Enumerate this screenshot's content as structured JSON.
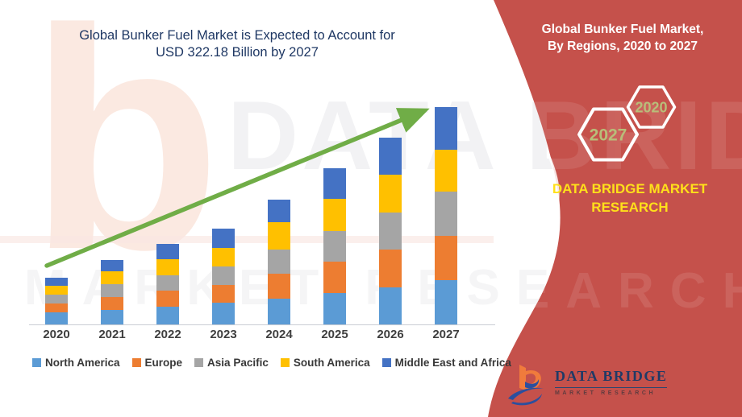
{
  "title": {
    "line1": "Global Bunker Fuel Market is Expected to Account for",
    "line2": "USD 322.18 Billion by 2027"
  },
  "panel": {
    "header_line1": "Global Bunker Fuel Market,",
    "header_line2": "By Regions, 2020 to 2027",
    "hexagon_large_label": "2027",
    "hexagon_small_label": "2020",
    "brand_line1": "DATA BRIDGE MARKET",
    "brand_line2": "RESEARCH",
    "bg_color": "#c5514b",
    "brand_color": "#ffe01a",
    "hex_label_color": "#b8be79"
  },
  "logo": {
    "name": "DATA BRIDGE",
    "tagline": "MARKET RESEARCH"
  },
  "watermark": {
    "letter": "b",
    "line1": "DATA BRIDGE",
    "line2": "MARKET RESEARCH"
  },
  "chart_data": {
    "type": "bar",
    "stacked": true,
    "title": "Global Bunker Fuel Market is Expected to Account for USD 322.18 Billion by 2027",
    "unit": "USD Billion",
    "categories": [
      "2020",
      "2021",
      "2022",
      "2023",
      "2024",
      "2025",
      "2026",
      "2027"
    ],
    "series": [
      {
        "name": "North America",
        "color": "#5b9bd5",
        "values": [
          17.9,
          21.8,
          25.8,
          31.8,
          38.1,
          46.9,
          54.8,
          65.8
        ]
      },
      {
        "name": "Europe",
        "color": "#ed7d31",
        "values": [
          13.5,
          19.1,
          23.8,
          26.9,
          36.6,
          45.6,
          55.6,
          64.7
        ]
      },
      {
        "name": "Asia Pacific",
        "color": "#a5a5a5",
        "values": [
          13.1,
          18.7,
          23.0,
          27.4,
          36.6,
          45.6,
          54.8,
          65.5
        ]
      },
      {
        "name": "South America",
        "color": "#ffc000",
        "values": [
          12.3,
          18.7,
          23.8,
          27.0,
          39.7,
          47.7,
          56.4,
          62.2
        ]
      },
      {
        "name": "Middle East and Africa",
        "color": "#4472c4",
        "values": [
          12.7,
          17.0,
          22.6,
          28.6,
          33.7,
          44.9,
          54.8,
          63.9
        ]
      }
    ],
    "totals": [
      69.5,
      95.3,
      119.0,
      141.7,
      184.7,
      230.7,
      276.4,
      322.18
    ],
    "ylim": [
      0,
      340
    ],
    "grid": false,
    "legend_position": "bottom",
    "trend_arrow": true,
    "trend_color": "#70ad47",
    "axis_color": "#c9cdd4"
  }
}
